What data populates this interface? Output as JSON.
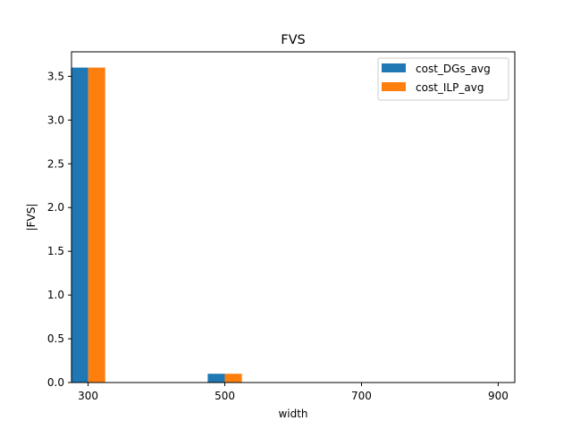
{
  "chart_data": {
    "type": "bar",
    "title": "FVS",
    "xlabel": "width",
    "ylabel": "|FVS|",
    "categories": [
      "300",
      "500",
      "700",
      "900"
    ],
    "series": [
      {
        "name": "cost_DGs_avg",
        "color": "#1f77b4",
        "values": [
          3.6,
          0.1,
          0,
          0
        ]
      },
      {
        "name": "cost_ILP_avg",
        "color": "#ff7f0e",
        "values": [
          3.6,
          0.1,
          0,
          0
        ]
      }
    ],
    "ylim": [
      0,
      3.78
    ],
    "yticks": [
      "0.0",
      "0.5",
      "1.0",
      "1.5",
      "2.0",
      "2.5",
      "3.0",
      "3.5"
    ],
    "grid": false,
    "legend_position": "top-right"
  }
}
